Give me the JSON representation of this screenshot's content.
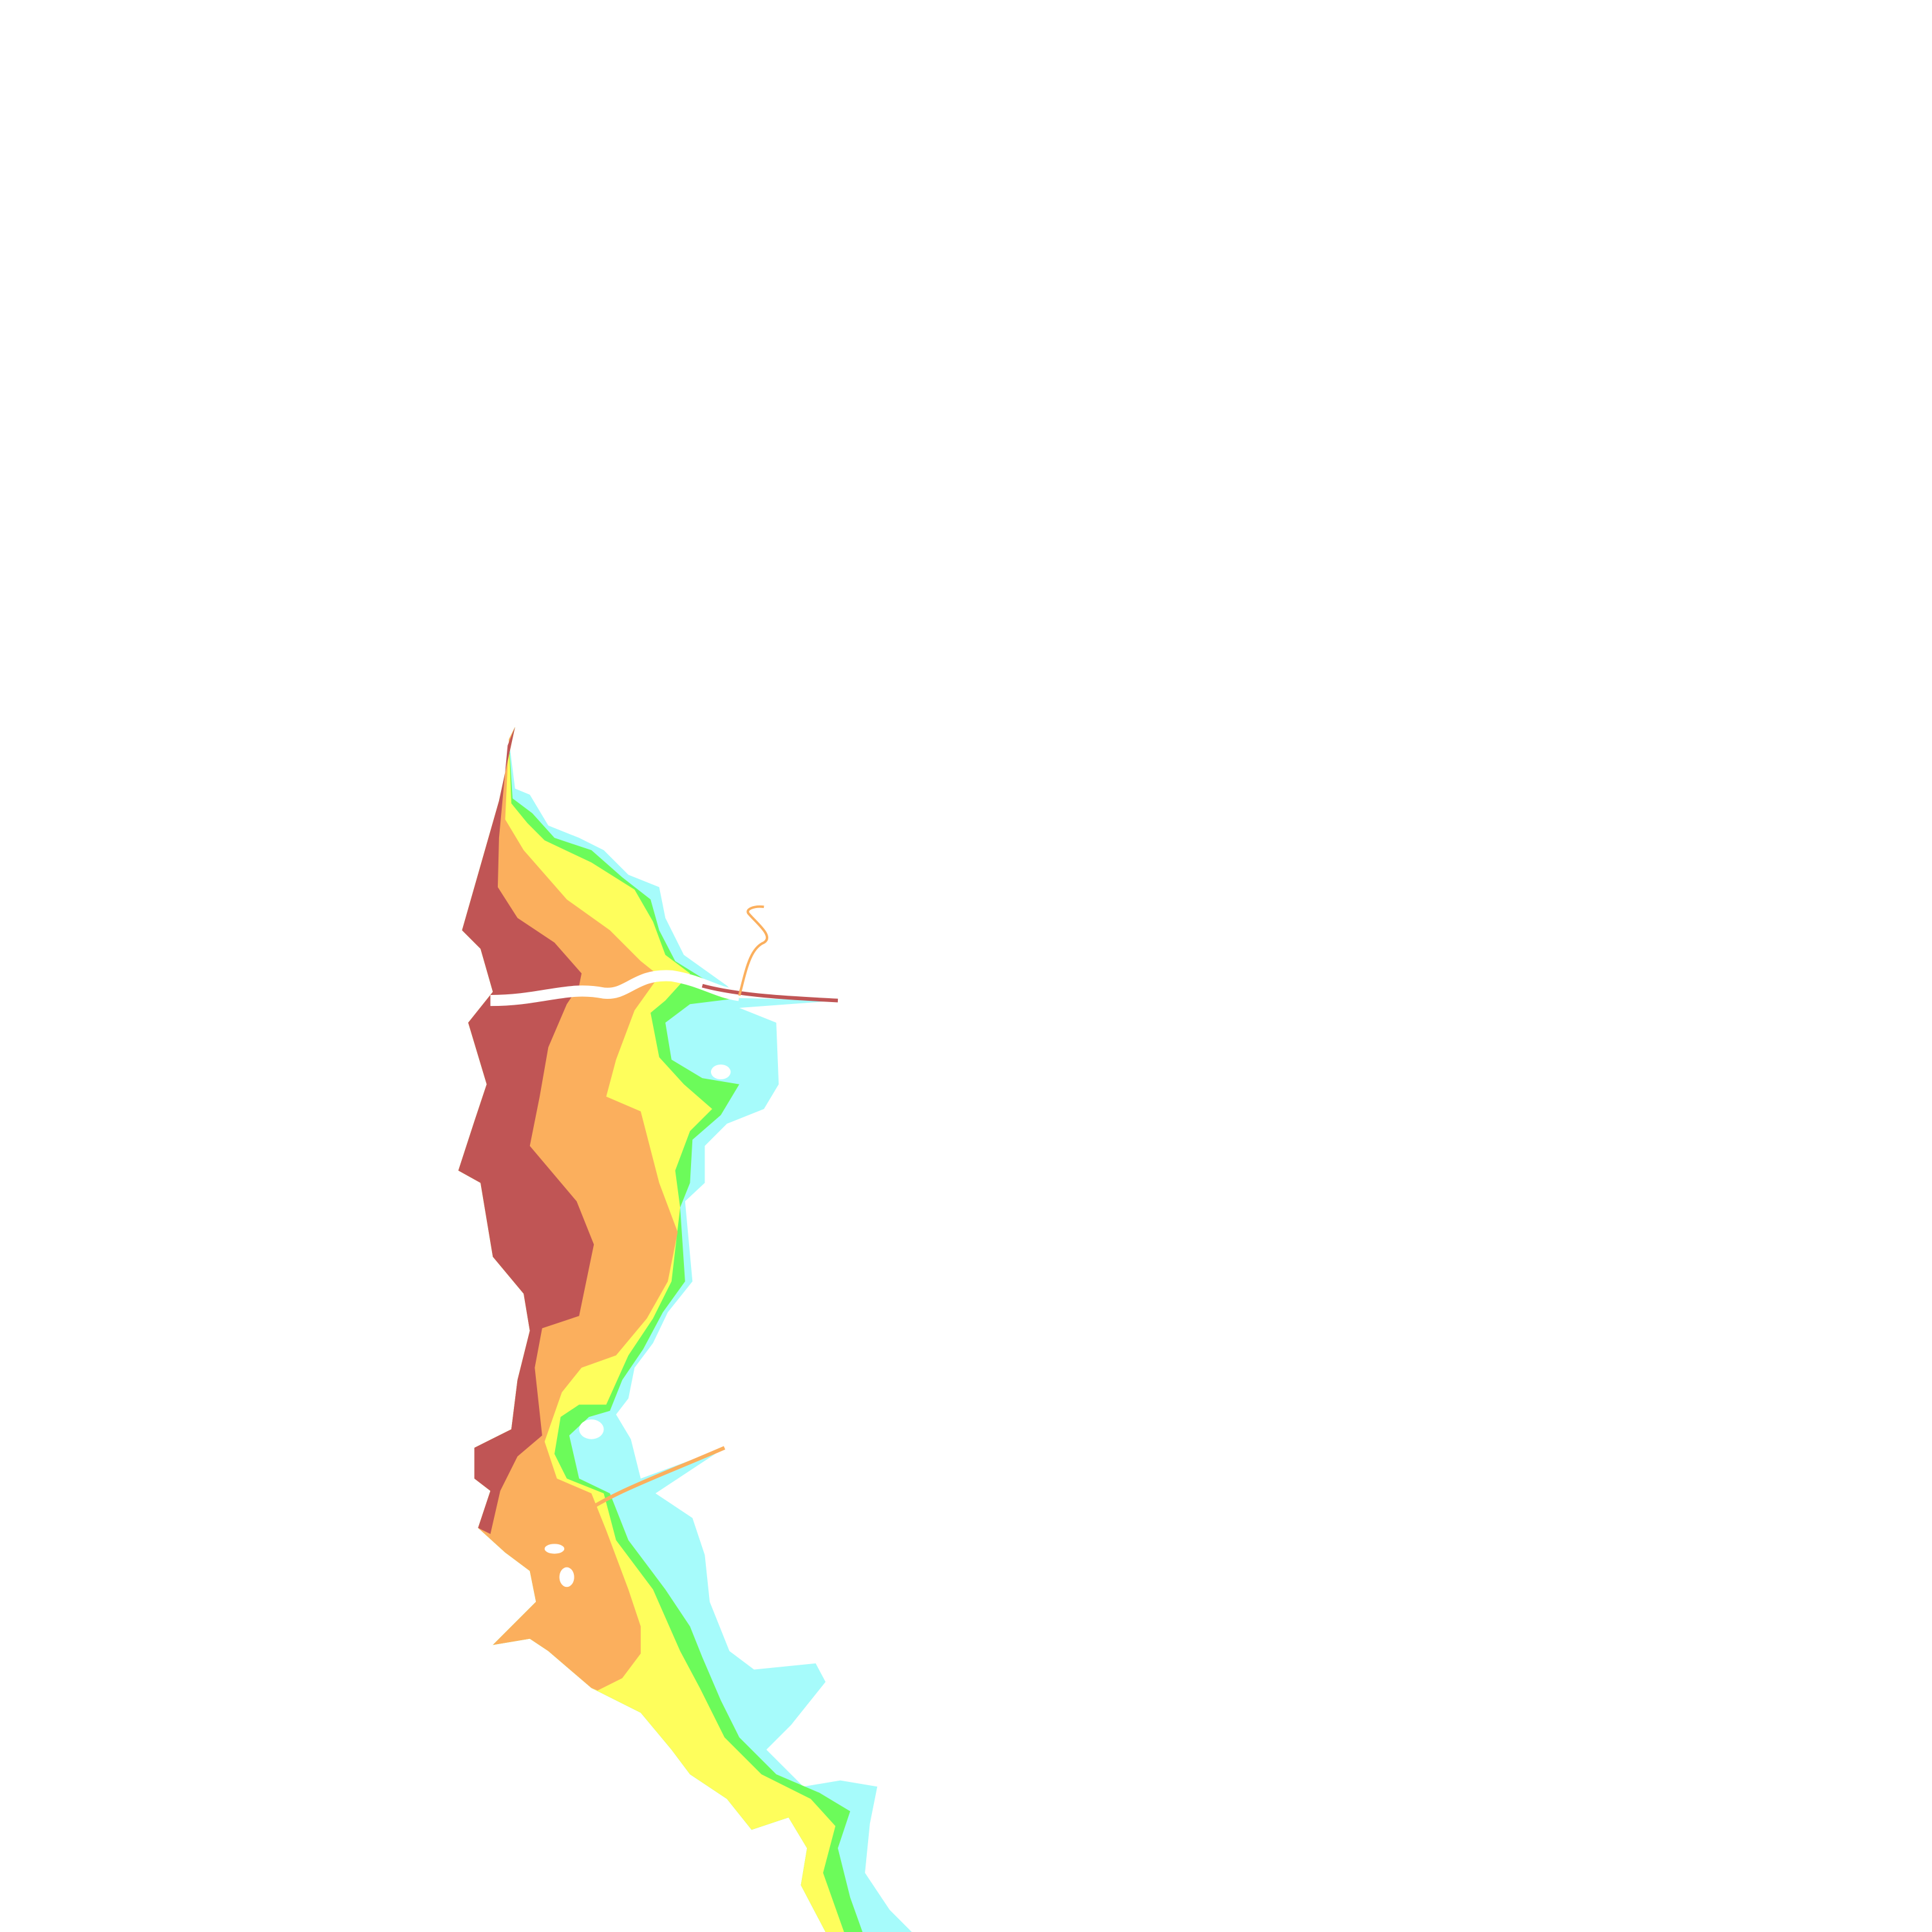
{
  "map": {
    "background": "#ffffff",
    "zones": [
      {
        "id": "zone-1",
        "color": "#a6fbfb"
      },
      {
        "id": "zone-2",
        "color": "#6cfb5a"
      },
      {
        "id": "zone-3",
        "color": "#fefe5c"
      },
      {
        "id": "zone-4",
        "color": "#fbaf5d"
      },
      {
        "id": "zone-5",
        "color": "#c05555"
      }
    ]
  }
}
